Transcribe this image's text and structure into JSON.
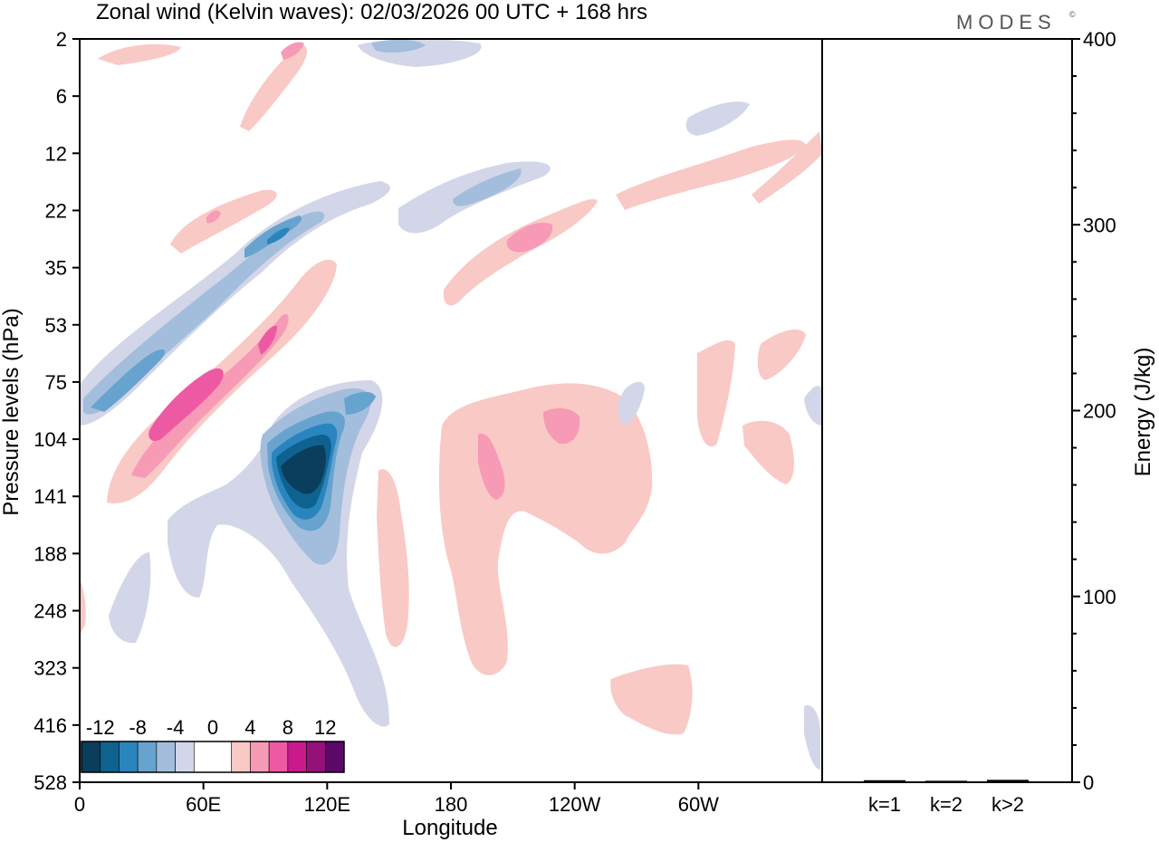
{
  "chart_data": {
    "type": "heatmap",
    "title": "Zonal wind (Kelvin waves):  02/03/2026  00 UTC  + 168 hrs",
    "brand": "MODES",
    "brand_mark": "©",
    "xlabel": "Longitude",
    "ylabel": "Pressure levels (hPa)",
    "y2label": "Energy (J/kg)",
    "x_ticks": [
      "0",
      "60E",
      "120E",
      "180",
      "120W",
      "60W"
    ],
    "x_tick_lons": [
      0,
      60,
      120,
      180,
      240,
      300
    ],
    "xlim": [
      0,
      360
    ],
    "y_levels": [
      2,
      6,
      12,
      22,
      35,
      53,
      75,
      104,
      141,
      188,
      248,
      323,
      416,
      528
    ],
    "energy_ylim": [
      0,
      400
    ],
    "energy_ticks": [
      0,
      100,
      200,
      300,
      400
    ],
    "energy_categories": [
      "k=1",
      "k=2",
      "k>2"
    ],
    "energy_values": [
      0.6,
      0.3,
      0.8
    ],
    "colorbar": {
      "labels": [
        "-12",
        "-8",
        "-4",
        "0",
        "4",
        "8",
        "12"
      ],
      "label_values": [
        -12,
        -8,
        -4,
        0,
        4,
        8,
        12
      ],
      "bins": [
        {
          "from": -14,
          "to": -12,
          "color": "#0b3d5c"
        },
        {
          "from": -12,
          "to": -10,
          "color": "#0e628f"
        },
        {
          "from": -10,
          "to": -8,
          "color": "#2a85bf"
        },
        {
          "from": -8,
          "to": -6,
          "color": "#67a3cf"
        },
        {
          "from": -6,
          "to": -4,
          "color": "#a3bedc"
        },
        {
          "from": -4,
          "to": -2,
          "color": "#d3d6e8"
        },
        {
          "from": -2,
          "to": 2,
          "color": "#ffffff"
        },
        {
          "from": 2,
          "to": 4,
          "color": "#f9c9c6"
        },
        {
          "from": 4,
          "to": 6,
          "color": "#f79ab5"
        },
        {
          "from": 6,
          "to": 8,
          "color": "#ed5aa3"
        },
        {
          "from": 8,
          "to": 10,
          "color": "#c9198c"
        },
        {
          "from": 10,
          "to": 12,
          "color": "#96107a"
        },
        {
          "from": 12,
          "to": 14,
          "color": "#5a0a66"
        }
      ]
    },
    "features": [
      {
        "name": "neg-band-upper-tilt",
        "lon": [
          20,
          150
        ],
        "p": [
          80,
          14
        ],
        "value": -4
      },
      {
        "name": "neg-core-upper",
        "lon": [
          40,
          100
        ],
        "p": [
          60,
          24
        ],
        "value": -8
      },
      {
        "name": "pos-band-mid-tilt",
        "lon": [
          15,
          120
        ],
        "p": [
          130,
          35
        ],
        "value": 4
      },
      {
        "name": "pos-core-mid",
        "lon": [
          40,
          95
        ],
        "p": [
          95,
          52
        ],
        "value": 8
      },
      {
        "name": "neg-core-main",
        "lon": [
          90,
          135
        ],
        "p": [
          190,
          85
        ],
        "value": -12
      },
      {
        "name": "neg-plume-low",
        "lon": [
          45,
          150
        ],
        "p": [
          420,
          104
        ],
        "value": -4
      },
      {
        "name": "pos-region-east",
        "lon": [
          175,
          280
        ],
        "p": [
          340,
          80
        ],
        "value": 4
      },
      {
        "name": "pos-band-upper-east",
        "lon": [
          170,
          360
        ],
        "p": [
          42,
          10
        ],
        "value": 4
      },
      {
        "name": "pos-patch-low-east",
        "lon": [
          260,
          300
        ],
        "p": [
          420,
          320
        ],
        "value": 4
      }
    ]
  }
}
